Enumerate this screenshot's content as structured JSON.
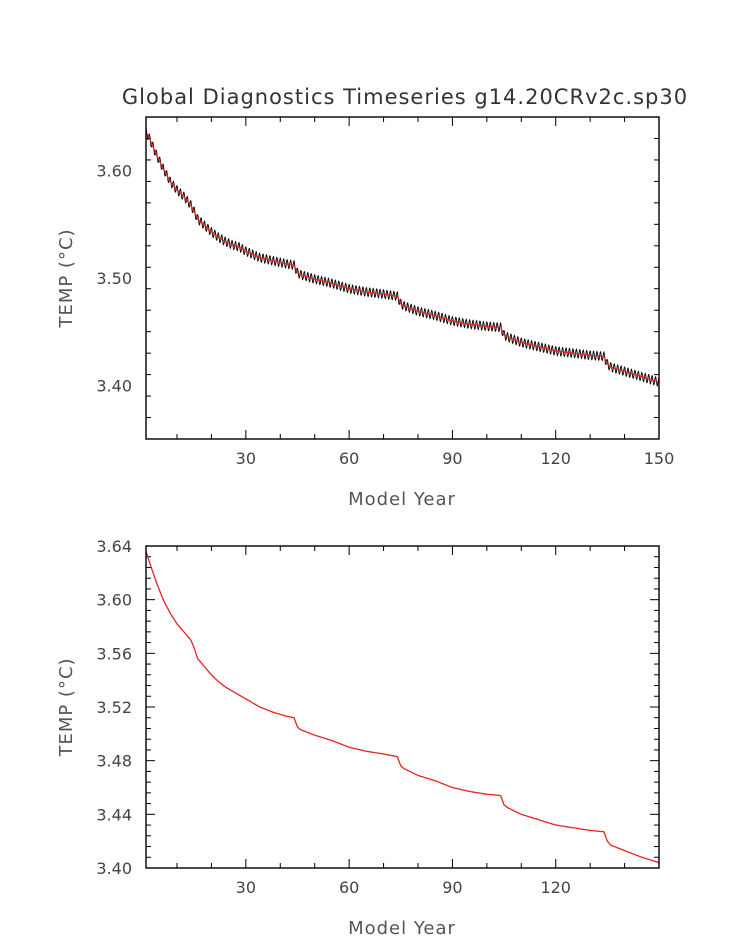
{
  "chart_data": [
    {
      "type": "line",
      "title": "Global Diagnostics Timeseries g14.20CRv2c.sp30",
      "xlabel": "Model Year",
      "ylabel": "TEMP (°C)",
      "xlim": [
        1,
        150
      ],
      "ylim": [
        3.35,
        3.65
      ],
      "xticks": [
        30,
        60,
        90,
        120,
        150
      ],
      "yticks": [
        3.4,
        3.5,
        3.6
      ],
      "yticklabels": [
        "3.40",
        "3.50",
        "3.60"
      ],
      "series": [
        {
          "color": "#000000",
          "kind": "monthly",
          "seasonal_amplitude": 0.004,
          "x": [
            1,
            2,
            4,
            6,
            8,
            10,
            12,
            14,
            15,
            16,
            18,
            20,
            22,
            24,
            26,
            28,
            30,
            34,
            38,
            42,
            44,
            45,
            46,
            50,
            55,
            60,
            65,
            70,
            74,
            75,
            76,
            80,
            85,
            90,
            95,
            100,
            104,
            105,
            106,
            110,
            115,
            120,
            125,
            130,
            134,
            135,
            136,
            140,
            145,
            150
          ],
          "y": [
            3.636,
            3.63,
            3.615,
            3.602,
            3.59,
            3.582,
            3.576,
            3.568,
            3.562,
            3.555,
            3.549,
            3.543,
            3.538,
            3.534,
            3.531,
            3.529,
            3.525,
            3.519,
            3.516,
            3.513,
            3.512,
            3.505,
            3.503,
            3.499,
            3.495,
            3.49,
            3.487,
            3.485,
            3.483,
            3.476,
            3.474,
            3.469,
            3.465,
            3.46,
            3.457,
            3.455,
            3.454,
            3.447,
            3.445,
            3.44,
            3.436,
            3.432,
            3.43,
            3.428,
            3.427,
            3.42,
            3.417,
            3.413,
            3.408,
            3.403
          ]
        },
        {
          "color": "#e8231f",
          "kind": "annual",
          "x": [
            1,
            2,
            4,
            6,
            8,
            10,
            12,
            14,
            15,
            16,
            18,
            20,
            22,
            24,
            26,
            28,
            30,
            34,
            38,
            42,
            44,
            45,
            46,
            50,
            55,
            60,
            65,
            70,
            74,
            75,
            76,
            80,
            85,
            90,
            95,
            100,
            104,
            105,
            106,
            110,
            115,
            120,
            125,
            130,
            134,
            135,
            136,
            140,
            145,
            150
          ],
          "y": [
            3.636,
            3.63,
            3.615,
            3.602,
            3.59,
            3.582,
            3.576,
            3.568,
            3.562,
            3.555,
            3.549,
            3.543,
            3.538,
            3.534,
            3.531,
            3.529,
            3.525,
            3.519,
            3.516,
            3.513,
            3.512,
            3.505,
            3.503,
            3.499,
            3.495,
            3.49,
            3.487,
            3.485,
            3.483,
            3.476,
            3.474,
            3.469,
            3.465,
            3.46,
            3.457,
            3.455,
            3.454,
            3.447,
            3.445,
            3.44,
            3.436,
            3.432,
            3.43,
            3.428,
            3.427,
            3.42,
            3.417,
            3.413,
            3.408,
            3.403
          ]
        }
      ]
    },
    {
      "type": "line",
      "title": "",
      "xlabel": "Model Year",
      "ylabel": "TEMP (°C)",
      "xlim": [
        1,
        150
      ],
      "ylim": [
        3.4,
        3.64
      ],
      "xticks": [
        30,
        60,
        90,
        120
      ],
      "yticks": [
        3.4,
        3.44,
        3.48,
        3.52,
        3.56,
        3.6,
        3.64
      ],
      "yticklabels": [
        "3.40",
        "3.44",
        "3.48",
        "3.52",
        "3.56",
        "3.60",
        "3.64"
      ],
      "series": [
        {
          "color": "#e8231f",
          "kind": "annual",
          "x": [
            1,
            2,
            4,
            6,
            8,
            10,
            12,
            14,
            15,
            16,
            18,
            20,
            22,
            24,
            26,
            28,
            30,
            34,
            38,
            42,
            44,
            45,
            46,
            50,
            55,
            60,
            65,
            70,
            74,
            75,
            76,
            80,
            85,
            90,
            95,
            100,
            104,
            105,
            106,
            110,
            115,
            120,
            125,
            130,
            134,
            135,
            136,
            140,
            145,
            150
          ],
          "y": [
            3.636,
            3.628,
            3.613,
            3.6,
            3.59,
            3.582,
            3.576,
            3.57,
            3.564,
            3.556,
            3.55,
            3.544,
            3.539,
            3.535,
            3.532,
            3.529,
            3.526,
            3.52,
            3.516,
            3.513,
            3.512,
            3.505,
            3.503,
            3.499,
            3.495,
            3.49,
            3.487,
            3.485,
            3.483,
            3.476,
            3.474,
            3.469,
            3.465,
            3.46,
            3.457,
            3.455,
            3.454,
            3.447,
            3.445,
            3.44,
            3.436,
            3.432,
            3.43,
            3.428,
            3.427,
            3.42,
            3.417,
            3.413,
            3.408,
            3.404
          ]
        }
      ]
    }
  ]
}
